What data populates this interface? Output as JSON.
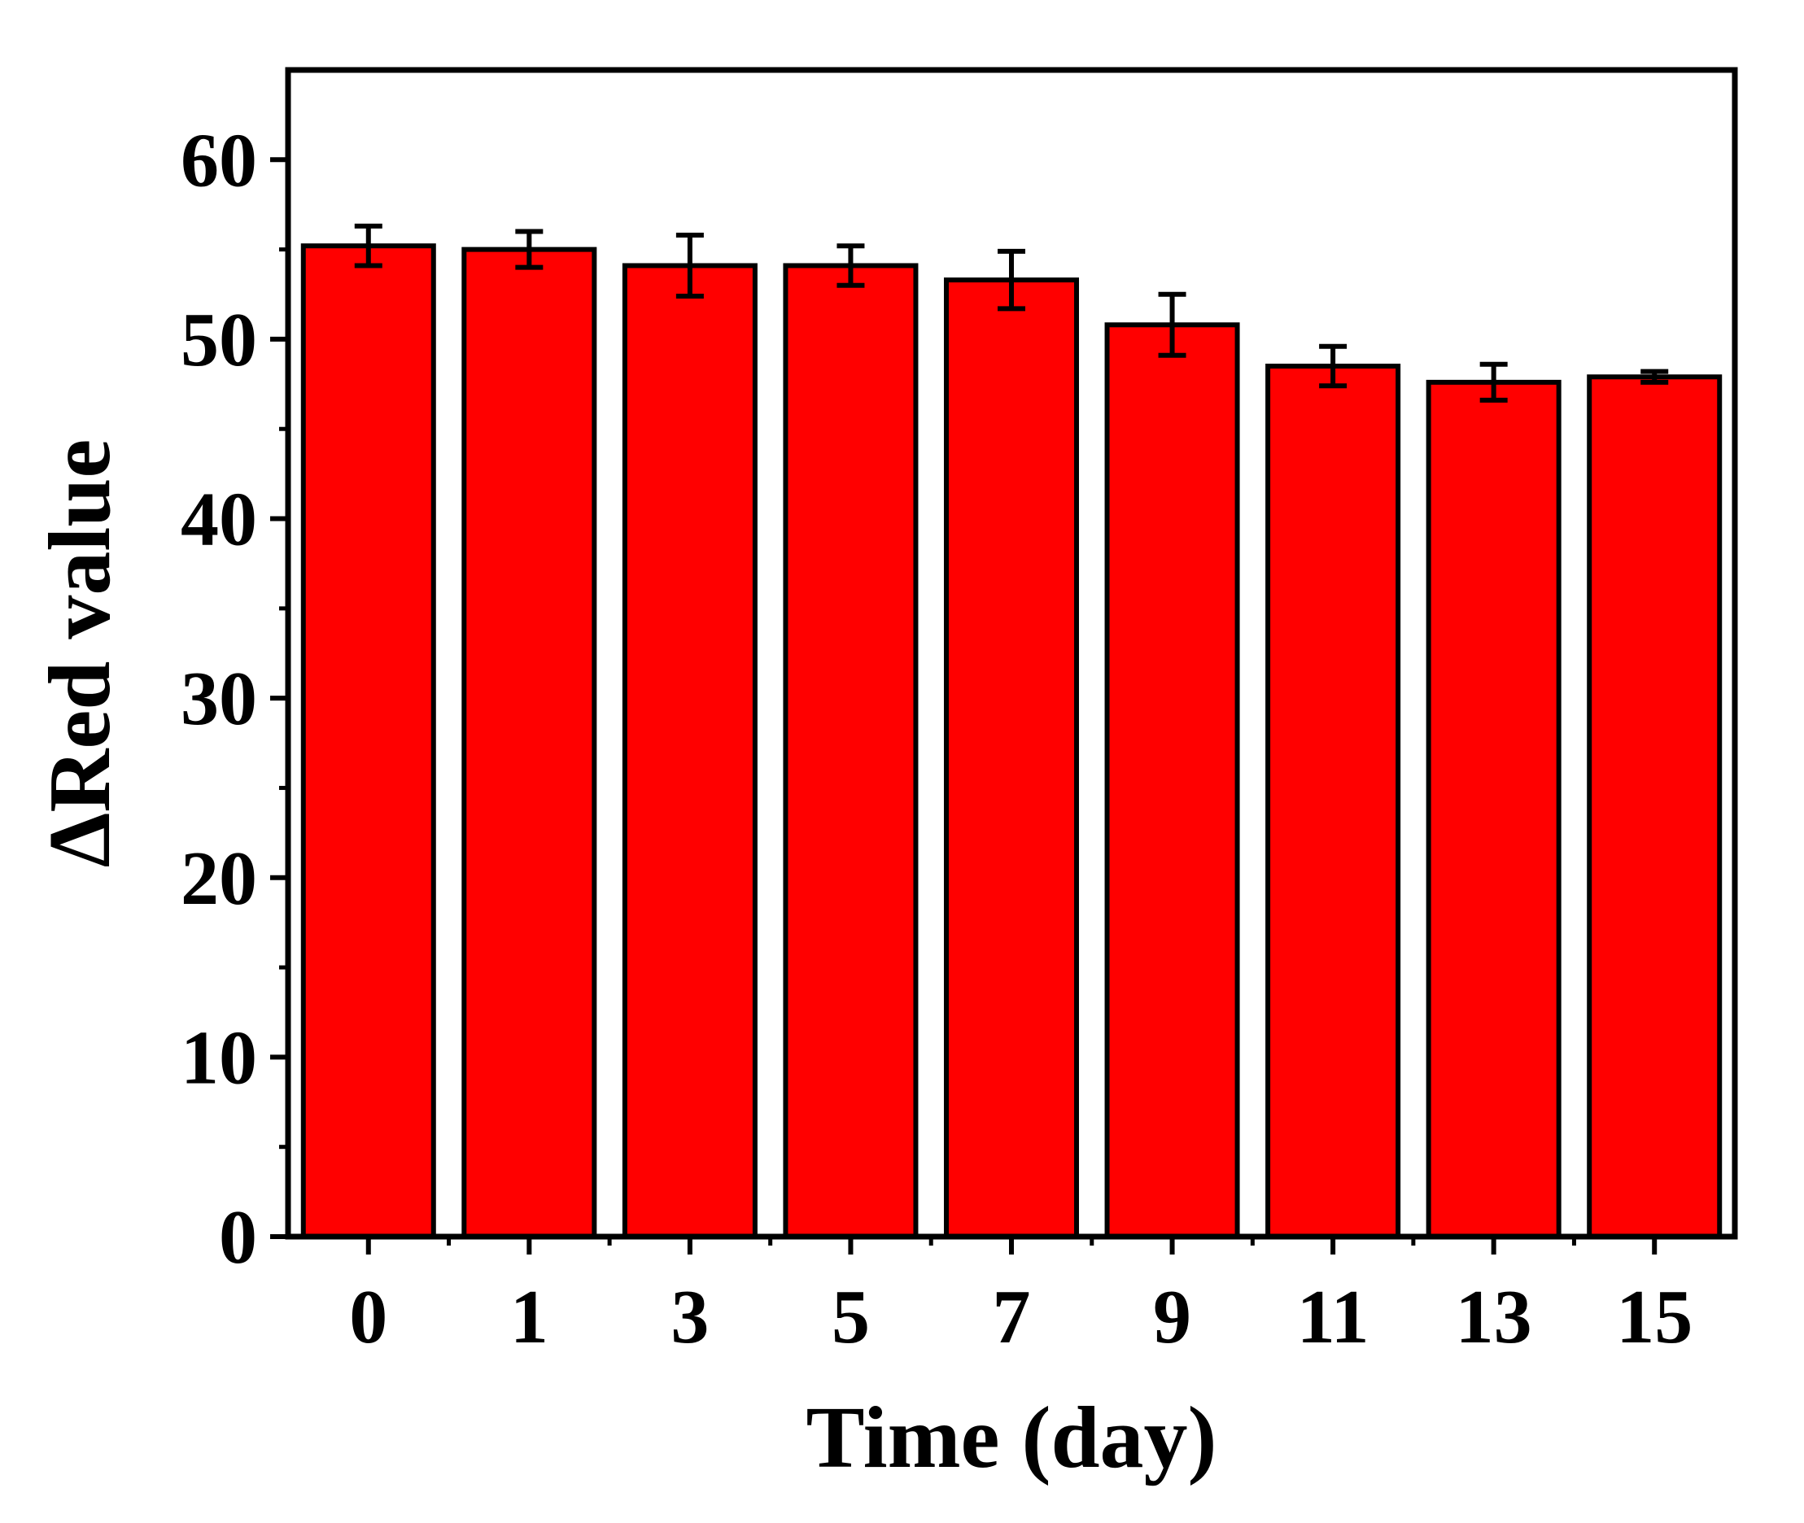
{
  "chart_data": {
    "type": "bar",
    "title": "",
    "xlabel": "Time (day)",
    "ylabel": "ΔRed value",
    "categories": [
      "0",
      "1",
      "3",
      "5",
      "7",
      "9",
      "11",
      "13",
      "15"
    ],
    "series": [
      {
        "values": [
          55.2,
          55.0,
          54.1,
          54.1,
          53.3,
          50.8,
          48.5,
          47.6,
          47.9
        ],
        "errors": [
          1.1,
          1.0,
          1.7,
          1.1,
          1.6,
          1.7,
          1.1,
          1.0,
          0.3
        ],
        "color": "#ff0000"
      }
    ],
    "ylim": [
      0,
      65
    ],
    "yticks": [
      "0",
      "10",
      "20",
      "30",
      "40",
      "50",
      "60"
    ],
    "grid": false,
    "legend": "none"
  }
}
